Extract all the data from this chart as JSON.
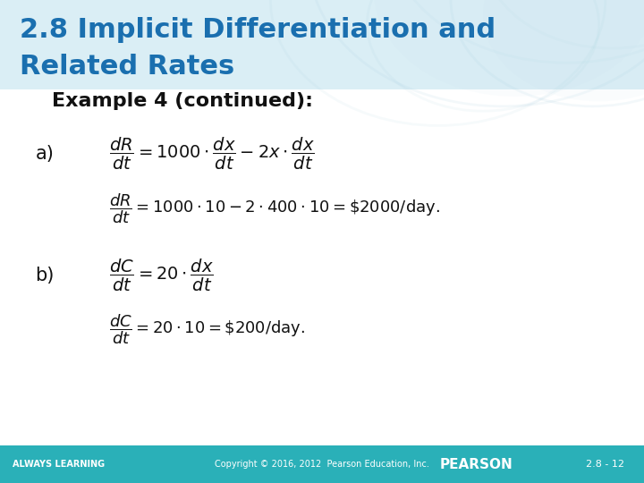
{
  "title_line1": "2.8 Implicit Differentiation and",
  "title_line2": "Related Rates",
  "title_color": "#1a6faf",
  "title_fontsize": 22,
  "header_bg_color": "#daeef5",
  "footer_bg_color": "#2ab0b8",
  "footer_text_left": "ALWAYS LEARNING",
  "footer_text_center": "Copyright © 2016, 2012  Pearson Education, Inc.",
  "footer_text_right": "PEARSON",
  "footer_text_page": "2.8 - 12",
  "footer_color": "#ffffff",
  "body_bg_color": "#ffffff",
  "example_text": "Example 4 (continued):",
  "example_fontsize": 16,
  "formula_fontsize": 15,
  "label_a": "a)",
  "label_b": "b)",
  "formula_a1": "$\\dfrac{dR}{dt} = 1000 \\cdot \\dfrac{dx}{dt} - 2x \\cdot \\dfrac{dx}{dt}$",
  "formula_a2": "$\\dfrac{dR}{dt} = 1000 \\cdot 10 - 2 \\cdot 400 \\cdot 10 = \\$2000 / \\mathrm{day.}$",
  "formula_b1": "$\\dfrac{dC}{dt} = 20 \\cdot \\dfrac{dx}{dt}$",
  "formula_b2": "$\\dfrac{dC}{dt} = 20 \\cdot 10 = \\$200 / \\mathrm{day.}$"
}
